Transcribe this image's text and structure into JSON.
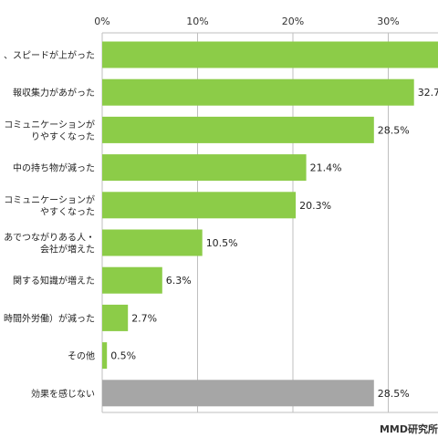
{
  "chart_data": {
    "type": "bar",
    "orientation": "horizontal",
    "xlim": [
      0,
      36
    ],
    "grid": true,
    "ticks": [
      "0%",
      "10%",
      "20%",
      "30%"
    ],
    "categories": [
      [
        "、スピードが上がった"
      ],
      [
        "報収集力があがった"
      ],
      [
        "コミュニケーションが",
        "りやすくなった"
      ],
      [
        "中の持ち物が減った"
      ],
      [
        "コミュニケーションが",
        "やすくなった"
      ],
      [
        "あでつながりある人・",
        "会社が増えた"
      ],
      [
        "関する知識が増えた"
      ],
      [
        "時間外労働）が減った"
      ],
      [
        "その他"
      ],
      [
        "効果を感じない"
      ]
    ],
    "values": [
      36,
      32.7,
      28.5,
      21.4,
      20.3,
      10.5,
      6.3,
      2.7,
      0.5,
      28.5
    ],
    "value_labels": [
      "",
      "32.7",
      "28.5%",
      "21.4%",
      "20.3%",
      "10.5%",
      "6.3%",
      "2.7%",
      "0.5%",
      "28.5%"
    ],
    "colors": [
      "#8ccc48",
      "#8ccc48",
      "#8ccc48",
      "#8ccc48",
      "#8ccc48",
      "#8ccc48",
      "#8ccc48",
      "#8ccc48",
      "#8ccc48",
      "#a6a6a6"
    ],
    "credit": "MMD研究所"
  }
}
